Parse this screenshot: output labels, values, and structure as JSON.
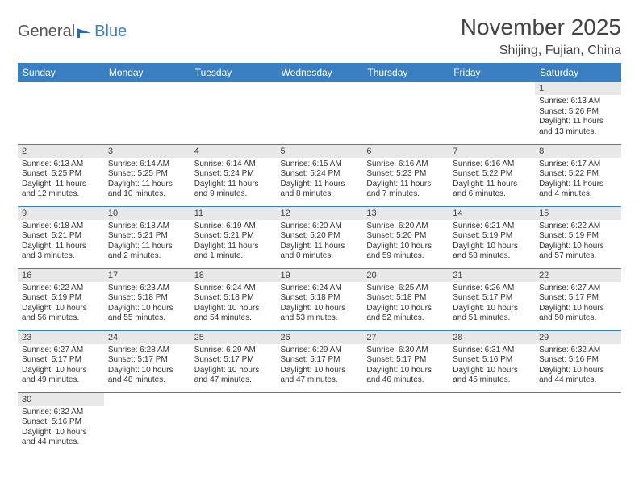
{
  "branding": {
    "part1": "General",
    "part2": "Blue"
  },
  "title": "November 2025",
  "location": "Shijing, Fujian, China",
  "colors": {
    "header_bg": "#3a7fc2",
    "header_text": "#ffffff",
    "daynum_bg": "#e8e8e8",
    "border": "#3a7fc2",
    "text": "#333333"
  },
  "day_headers": [
    "Sunday",
    "Monday",
    "Tuesday",
    "Wednesday",
    "Thursday",
    "Friday",
    "Saturday"
  ],
  "weeks": [
    [
      {
        "n": "",
        "sr": "",
        "ss": "",
        "dl": ""
      },
      {
        "n": "",
        "sr": "",
        "ss": "",
        "dl": ""
      },
      {
        "n": "",
        "sr": "",
        "ss": "",
        "dl": ""
      },
      {
        "n": "",
        "sr": "",
        "ss": "",
        "dl": ""
      },
      {
        "n": "",
        "sr": "",
        "ss": "",
        "dl": ""
      },
      {
        "n": "",
        "sr": "",
        "ss": "",
        "dl": ""
      },
      {
        "n": "1",
        "sr": "Sunrise: 6:13 AM",
        "ss": "Sunset: 5:26 PM",
        "dl": "Daylight: 11 hours and 13 minutes."
      }
    ],
    [
      {
        "n": "2",
        "sr": "Sunrise: 6:13 AM",
        "ss": "Sunset: 5:25 PM",
        "dl": "Daylight: 11 hours and 12 minutes."
      },
      {
        "n": "3",
        "sr": "Sunrise: 6:14 AM",
        "ss": "Sunset: 5:25 PM",
        "dl": "Daylight: 11 hours and 10 minutes."
      },
      {
        "n": "4",
        "sr": "Sunrise: 6:14 AM",
        "ss": "Sunset: 5:24 PM",
        "dl": "Daylight: 11 hours and 9 minutes."
      },
      {
        "n": "5",
        "sr": "Sunrise: 6:15 AM",
        "ss": "Sunset: 5:24 PM",
        "dl": "Daylight: 11 hours and 8 minutes."
      },
      {
        "n": "6",
        "sr": "Sunrise: 6:16 AM",
        "ss": "Sunset: 5:23 PM",
        "dl": "Daylight: 11 hours and 7 minutes."
      },
      {
        "n": "7",
        "sr": "Sunrise: 6:16 AM",
        "ss": "Sunset: 5:22 PM",
        "dl": "Daylight: 11 hours and 6 minutes."
      },
      {
        "n": "8",
        "sr": "Sunrise: 6:17 AM",
        "ss": "Sunset: 5:22 PM",
        "dl": "Daylight: 11 hours and 4 minutes."
      }
    ],
    [
      {
        "n": "9",
        "sr": "Sunrise: 6:18 AM",
        "ss": "Sunset: 5:21 PM",
        "dl": "Daylight: 11 hours and 3 minutes."
      },
      {
        "n": "10",
        "sr": "Sunrise: 6:18 AM",
        "ss": "Sunset: 5:21 PM",
        "dl": "Daylight: 11 hours and 2 minutes."
      },
      {
        "n": "11",
        "sr": "Sunrise: 6:19 AM",
        "ss": "Sunset: 5:21 PM",
        "dl": "Daylight: 11 hours and 1 minute."
      },
      {
        "n": "12",
        "sr": "Sunrise: 6:20 AM",
        "ss": "Sunset: 5:20 PM",
        "dl": "Daylight: 11 hours and 0 minutes."
      },
      {
        "n": "13",
        "sr": "Sunrise: 6:20 AM",
        "ss": "Sunset: 5:20 PM",
        "dl": "Daylight: 10 hours and 59 minutes."
      },
      {
        "n": "14",
        "sr": "Sunrise: 6:21 AM",
        "ss": "Sunset: 5:19 PM",
        "dl": "Daylight: 10 hours and 58 minutes."
      },
      {
        "n": "15",
        "sr": "Sunrise: 6:22 AM",
        "ss": "Sunset: 5:19 PM",
        "dl": "Daylight: 10 hours and 57 minutes."
      }
    ],
    [
      {
        "n": "16",
        "sr": "Sunrise: 6:22 AM",
        "ss": "Sunset: 5:19 PM",
        "dl": "Daylight: 10 hours and 56 minutes."
      },
      {
        "n": "17",
        "sr": "Sunrise: 6:23 AM",
        "ss": "Sunset: 5:18 PM",
        "dl": "Daylight: 10 hours and 55 minutes."
      },
      {
        "n": "18",
        "sr": "Sunrise: 6:24 AM",
        "ss": "Sunset: 5:18 PM",
        "dl": "Daylight: 10 hours and 54 minutes."
      },
      {
        "n": "19",
        "sr": "Sunrise: 6:24 AM",
        "ss": "Sunset: 5:18 PM",
        "dl": "Daylight: 10 hours and 53 minutes."
      },
      {
        "n": "20",
        "sr": "Sunrise: 6:25 AM",
        "ss": "Sunset: 5:18 PM",
        "dl": "Daylight: 10 hours and 52 minutes."
      },
      {
        "n": "21",
        "sr": "Sunrise: 6:26 AM",
        "ss": "Sunset: 5:17 PM",
        "dl": "Daylight: 10 hours and 51 minutes."
      },
      {
        "n": "22",
        "sr": "Sunrise: 6:27 AM",
        "ss": "Sunset: 5:17 PM",
        "dl": "Daylight: 10 hours and 50 minutes."
      }
    ],
    [
      {
        "n": "23",
        "sr": "Sunrise: 6:27 AM",
        "ss": "Sunset: 5:17 PM",
        "dl": "Daylight: 10 hours and 49 minutes."
      },
      {
        "n": "24",
        "sr": "Sunrise: 6:28 AM",
        "ss": "Sunset: 5:17 PM",
        "dl": "Daylight: 10 hours and 48 minutes."
      },
      {
        "n": "25",
        "sr": "Sunrise: 6:29 AM",
        "ss": "Sunset: 5:17 PM",
        "dl": "Daylight: 10 hours and 47 minutes."
      },
      {
        "n": "26",
        "sr": "Sunrise: 6:29 AM",
        "ss": "Sunset: 5:17 PM",
        "dl": "Daylight: 10 hours and 47 minutes."
      },
      {
        "n": "27",
        "sr": "Sunrise: 6:30 AM",
        "ss": "Sunset: 5:17 PM",
        "dl": "Daylight: 10 hours and 46 minutes."
      },
      {
        "n": "28",
        "sr": "Sunrise: 6:31 AM",
        "ss": "Sunset: 5:16 PM",
        "dl": "Daylight: 10 hours and 45 minutes."
      },
      {
        "n": "29",
        "sr": "Sunrise: 6:32 AM",
        "ss": "Sunset: 5:16 PM",
        "dl": "Daylight: 10 hours and 44 minutes."
      }
    ],
    [
      {
        "n": "30",
        "sr": "Sunrise: 6:32 AM",
        "ss": "Sunset: 5:16 PM",
        "dl": "Daylight: 10 hours and 44 minutes."
      },
      {
        "n": "",
        "sr": "",
        "ss": "",
        "dl": ""
      },
      {
        "n": "",
        "sr": "",
        "ss": "",
        "dl": ""
      },
      {
        "n": "",
        "sr": "",
        "ss": "",
        "dl": ""
      },
      {
        "n": "",
        "sr": "",
        "ss": "",
        "dl": ""
      },
      {
        "n": "",
        "sr": "",
        "ss": "",
        "dl": ""
      },
      {
        "n": "",
        "sr": "",
        "ss": "",
        "dl": ""
      }
    ]
  ]
}
